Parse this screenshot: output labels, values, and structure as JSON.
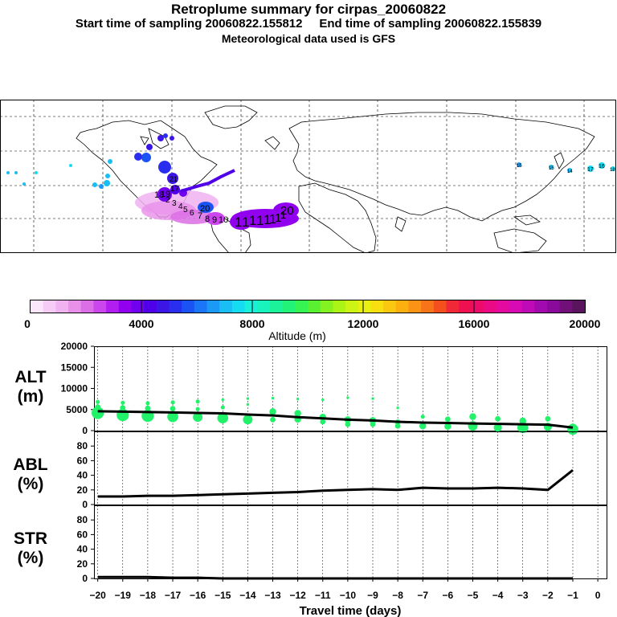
{
  "header": {
    "title": "Retroplume summary for cirpas_20060822",
    "sampling": "Start time of sampling 20060822.155812     End time of sampling 20060822.155839",
    "met": "Meteorological data used is GFS"
  },
  "colorbar": {
    "label": "Altitude (m)",
    "tick_labels": [
      "0",
      "4000",
      "8000",
      "12000",
      "16000",
      "20000"
    ],
    "colors": [
      "#fbe6fb",
      "#f6ccf6",
      "#f0b2f0",
      "#e890ea",
      "#dc6ee6",
      "#cc46ee",
      "#b21ef0",
      "#9200f0",
      "#7000ee",
      "#5000e8",
      "#3c16e6",
      "#2a2eee",
      "#1a52f4",
      "#1a76f6",
      "#1a9af6",
      "#18bef4",
      "#16dcf2",
      "#18f0dc",
      "#18f2bc",
      "#1cf29a",
      "#22f278",
      "#36f452",
      "#5af032",
      "#84f220",
      "#aaf416",
      "#ccf414",
      "#e8f012",
      "#f8e010",
      "#fac810",
      "#fbb010",
      "#fb9414",
      "#f87418",
      "#f4501e",
      "#f02838",
      "#ee1050",
      "#ec0a6a",
      "#ea0a86",
      "#e40aa0",
      "#d80ab4",
      "#c00ab8",
      "#a20ab0",
      "#8a0a9c",
      "#72107a",
      "#5a145e"
    ]
  },
  "map_labels": {
    "purple_numbers": [
      "1",
      "1",
      "1",
      "1",
      "1",
      "1",
      "1",
      "1",
      "20",
      "8",
      "9",
      "10",
      "7",
      "6",
      "5",
      "4",
      "3",
      "2",
      "18",
      "19",
      "17"
    ],
    "blue_labels": [
      "20",
      "21"
    ],
    "east_labels": [
      "15",
      "15",
      "17",
      "16",
      "14",
      "18"
    ]
  },
  "chart_data": [
    {
      "type": "scatter",
      "panel": "ALT",
      "title": "ALT",
      "ylabel": "(m)",
      "ylim": [
        0,
        20000
      ],
      "yticks": [
        0,
        5000,
        10000,
        15000,
        20000
      ],
      "mean_line": {
        "x": [
          -20,
          -19,
          -18,
          -17,
          -16,
          -15,
          -14,
          -13,
          -12,
          -11,
          -10,
          -9,
          -8,
          -7,
          -6,
          -5,
          -4,
          -3,
          -2,
          -1
        ],
        "y": [
          4600,
          4500,
          4400,
          4300,
          4200,
          4100,
          3800,
          3600,
          3200,
          2900,
          2600,
          2400,
          2100,
          1900,
          1800,
          1700,
          1600,
          1500,
          1400,
          700
        ]
      },
      "points": [
        {
          "x": -20,
          "y": 4200,
          "s": 9
        },
        {
          "x": -20,
          "y": 5600,
          "s": 4
        },
        {
          "x": -20,
          "y": 6800,
          "s": 3
        },
        {
          "x": -19,
          "y": 3700,
          "s": 9
        },
        {
          "x": -19,
          "y": 5400,
          "s": 4
        },
        {
          "x": -19,
          "y": 6600,
          "s": 3
        },
        {
          "x": -18,
          "y": 3500,
          "s": 9
        },
        {
          "x": -18,
          "y": 5300,
          "s": 4
        },
        {
          "x": -18,
          "y": 6500,
          "s": 3
        },
        {
          "x": -17,
          "y": 3300,
          "s": 8
        },
        {
          "x": -17,
          "y": 5200,
          "s": 4
        },
        {
          "x": -17,
          "y": 6700,
          "s": 3
        },
        {
          "x": -16,
          "y": 3200,
          "s": 7
        },
        {
          "x": -16,
          "y": 5100,
          "s": 3
        },
        {
          "x": -16,
          "y": 6900,
          "s": 3
        },
        {
          "x": -15,
          "y": 3000,
          "s": 8
        },
        {
          "x": -15,
          "y": 5500,
          "s": 3
        },
        {
          "x": -15,
          "y": 7300,
          "s": 2
        },
        {
          "x": -14,
          "y": 2600,
          "s": 7
        },
        {
          "x": -14,
          "y": 6200,
          "s": 2
        },
        {
          "x": -14,
          "y": 7600,
          "s": 2
        },
        {
          "x": -13,
          "y": 4500,
          "s": 5
        },
        {
          "x": -13,
          "y": 2600,
          "s": 4
        },
        {
          "x": -13,
          "y": 7700,
          "s": 2
        },
        {
          "x": -12,
          "y": 4100,
          "s": 5
        },
        {
          "x": -12,
          "y": 2700,
          "s": 5
        },
        {
          "x": -12,
          "y": 7500,
          "s": 2
        },
        {
          "x": -11,
          "y": 3200,
          "s": 5
        },
        {
          "x": -11,
          "y": 2100,
          "s": 4
        },
        {
          "x": -11,
          "y": 7300,
          "s": 2
        },
        {
          "x": -10,
          "y": 2600,
          "s": 5
        },
        {
          "x": -10,
          "y": 1500,
          "s": 4
        },
        {
          "x": -10,
          "y": 7800,
          "s": 2
        },
        {
          "x": -9,
          "y": 2400,
          "s": 5
        },
        {
          "x": -9,
          "y": 1500,
          "s": 4
        },
        {
          "x": -9,
          "y": 7600,
          "s": 2
        },
        {
          "x": -8,
          "y": 2000,
          "s": 4
        },
        {
          "x": -8,
          "y": 1100,
          "s": 4
        },
        {
          "x": -8,
          "y": 5400,
          "s": 2
        },
        {
          "x": -7,
          "y": 3300,
          "s": 3
        },
        {
          "x": -7,
          "y": 1100,
          "s": 5
        },
        {
          "x": -6,
          "y": 2700,
          "s": 4
        },
        {
          "x": -6,
          "y": 1000,
          "s": 5
        },
        {
          "x": -5,
          "y": 3300,
          "s": 5
        },
        {
          "x": -5,
          "y": 1100,
          "s": 7
        },
        {
          "x": -4,
          "y": 2800,
          "s": 4
        },
        {
          "x": -4,
          "y": 700,
          "s": 6
        },
        {
          "x": -3,
          "y": 2300,
          "s": 5
        },
        {
          "x": -3,
          "y": 700,
          "s": 8
        },
        {
          "x": -2,
          "y": 2800,
          "s": 4
        },
        {
          "x": -2,
          "y": 900,
          "s": 6
        },
        {
          "x": -1,
          "y": 700,
          "s": 6
        },
        {
          "x": -1,
          "y": 300,
          "s": 8
        }
      ]
    },
    {
      "type": "line",
      "panel": "ABL",
      "title": "ABL",
      "ylabel": "(%)",
      "ylim": [
        0,
        100
      ],
      "yticks": [
        0,
        20,
        40,
        60,
        80
      ],
      "x": [
        -20,
        -19,
        -18,
        -17,
        -16,
        -15,
        -14,
        -13,
        -12,
        -11,
        -10,
        -9,
        -8,
        -7,
        -6,
        -5,
        -4,
        -3,
        -2,
        -1
      ],
      "y": [
        11,
        11,
        12,
        12,
        13,
        14,
        15,
        16,
        17,
        19,
        20,
        21,
        20,
        23,
        22,
        22,
        23,
        22,
        20,
        47
      ]
    },
    {
      "type": "line",
      "panel": "STR",
      "title": "STR",
      "ylabel": "(%)",
      "ylim": [
        0,
        100
      ],
      "yticks": [
        0,
        20,
        40,
        60,
        80
      ],
      "x": [
        -20,
        -19,
        -18,
        -17,
        -16,
        -15,
        -14,
        -13,
        -12,
        -11,
        -10,
        -9,
        -8,
        -7,
        -6,
        -5,
        -4,
        -3,
        -2,
        -1
      ],
      "y": [
        2,
        2,
        2,
        1,
        1,
        0,
        0,
        0,
        0,
        0,
        0,
        0,
        0,
        0,
        0,
        0,
        0,
        0,
        0,
        0
      ],
      "xticks": [
        -20,
        -19,
        -18,
        -17,
        -16,
        -15,
        -14,
        -13,
        -12,
        -11,
        -10,
        -9,
        -8,
        -7,
        -6,
        -5,
        -4,
        -3,
        -2,
        -1,
        0
      ],
      "xtick_labels": [
        "−20",
        "−19",
        "−18",
        "−17",
        "−16",
        "−15",
        "−14",
        "−13",
        "−12",
        "−11",
        "−10",
        "−9",
        "−8",
        "−7",
        "−6",
        "−5",
        "−4",
        "−3",
        "−2",
        "−1",
        "0"
      ],
      "xlabel": "Travel time (days)"
    }
  ]
}
